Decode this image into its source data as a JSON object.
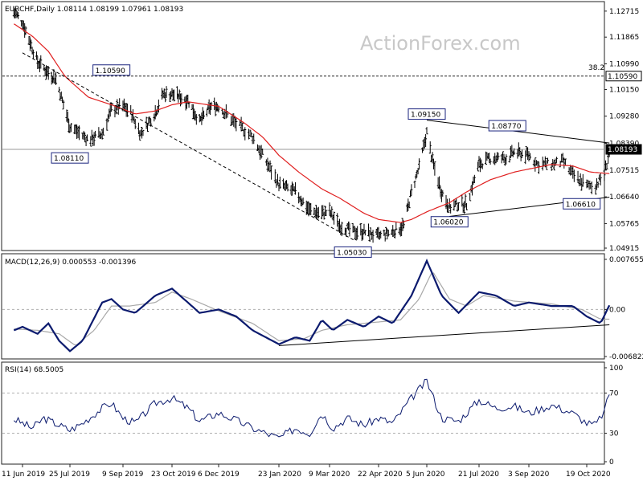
{
  "chart_data": {
    "type": "line",
    "watermark": "ActionForex.com",
    "colors": {
      "price": "#000000",
      "sma": "#e02020",
      "macd": "#0b1a6e",
      "signal": "#a8a8a8",
      "rsi": "#0b1a6e",
      "trendline": "#000000",
      "grid": "#b0b0b0",
      "label_border": "#1a237e",
      "last_price_bg": "#000000"
    },
    "x_ticks": [
      "11 Jun 2019",
      "25 Jul 2019",
      "9 Sep 2019",
      "23 Oct 2019",
      "6 Dec 2019",
      "23 Jan 2020",
      "9 Mar 2020",
      "22 Apr 2020",
      "5 Jun 2020",
      "21 Jul 2020",
      "3 Sep 2020",
      "19 Oct 2020"
    ],
    "price_panel": {
      "title": "EURCHF,Daily  1.08114 1.08199 1.07961 1.08193",
      "ylim": [
        1.0491,
        1.13
      ],
      "y_ticks": [
        "1.12715",
        "1.11865",
        "1.10990",
        "1.10150",
        "1.09280",
        "1.08390",
        "1.07515",
        "1.06640",
        "1.05765",
        "1.04915"
      ],
      "h_lines": [
        {
          "value": 1.1059,
          "style": "dashed",
          "label": "1.10590",
          "note": "38.2"
        },
        {
          "value": 1.08193,
          "style": "solid",
          "label": "1.08193"
        }
      ],
      "annotations": [
        {
          "text": "1.10590",
          "date": "2019-08-30",
          "value": 1.1059
        },
        {
          "text": "1.08110",
          "date": "2019-07-25",
          "value": 1.0811
        },
        {
          "text": "1.09150",
          "date": "2020-06-05",
          "value": 1.0915
        },
        {
          "text": "1.08770",
          "date": "2020-08-15",
          "value": 1.0877
        },
        {
          "text": "1.06020",
          "date": "2020-06-25",
          "value": 1.0602
        },
        {
          "text": "1.06610",
          "date": "2020-10-15",
          "value": 1.0661
        },
        {
          "text": "1.05030",
          "date": "2020-03-30",
          "value": 1.0503
        }
      ],
      "trendlines": [
        {
          "style": "dashed",
          "from": {
            "date": "2019-06-11",
            "value": 1.1135
          },
          "to": {
            "date": "2020-04-01",
            "value": 1.052
          }
        },
        {
          "style": "solid",
          "from": {
            "date": "2020-06-05",
            "value": 1.0915
          },
          "to": {
            "date": "2020-11-06",
            "value": 1.084
          }
        },
        {
          "style": "solid",
          "from": {
            "date": "2020-06-25",
            "value": 1.06
          },
          "to": {
            "date": "2020-11-06",
            "value": 1.0663
          }
        }
      ],
      "ohlc_anchors": [
        [
          "2019-06-03",
          1.127
        ],
        [
          "2019-06-11",
          1.1235
        ],
        [
          "2019-06-25",
          1.1105
        ],
        [
          "2019-07-05",
          1.107
        ],
        [
          "2019-07-12",
          1.105
        ],
        [
          "2019-07-25",
          1.0895
        ],
        [
          "2019-08-10",
          1.085
        ],
        [
          "2019-08-22",
          1.087
        ],
        [
          "2019-08-30",
          1.095
        ],
        [
          "2019-09-09",
          1.096
        ],
        [
          "2019-09-16",
          1.094
        ],
        [
          "2019-09-25",
          1.087
        ],
        [
          "2019-10-08",
          1.094
        ],
        [
          "2019-10-15",
          1.1
        ],
        [
          "2019-10-23",
          1.1
        ],
        [
          "2019-11-07",
          1.098
        ],
        [
          "2019-11-18",
          1.091
        ],
        [
          "2019-11-29",
          1.096
        ],
        [
          "2019-12-06",
          1.096
        ],
        [
          "2019-12-18",
          1.091
        ],
        [
          "2020-01-02",
          1.086
        ],
        [
          "2020-01-10",
          1.08
        ],
        [
          "2020-01-23",
          1.0705
        ],
        [
          "2020-02-07",
          1.068
        ],
        [
          "2020-02-20",
          1.062
        ],
        [
          "2020-03-02",
          1.061
        ],
        [
          "2020-03-09",
          1.0615
        ],
        [
          "2020-03-18",
          1.057
        ],
        [
          "2020-03-30",
          1.055
        ],
        [
          "2020-04-09",
          1.055
        ],
        [
          "2020-04-22",
          1.0535
        ],
        [
          "2020-05-05",
          1.055
        ],
        [
          "2020-05-15",
          1.057
        ],
        [
          "2020-05-22",
          1.068
        ],
        [
          "2020-05-29",
          1.076
        ],
        [
          "2020-06-05",
          1.0875
        ],
        [
          "2020-06-10",
          1.078
        ],
        [
          "2020-06-18",
          1.068
        ],
        [
          "2020-06-25",
          1.063
        ],
        [
          "2020-07-03",
          1.064
        ],
        [
          "2020-07-10",
          1.064
        ],
        [
          "2020-07-21",
          1.077
        ],
        [
          "2020-07-31",
          1.079
        ],
        [
          "2020-08-15",
          1.079
        ],
        [
          "2020-08-21",
          1.081
        ],
        [
          "2020-09-03",
          1.08
        ],
        [
          "2020-09-10",
          1.077
        ],
        [
          "2020-09-21",
          1.077
        ],
        [
          "2020-09-30",
          1.078
        ],
        [
          "2020-10-08",
          1.0735
        ],
        [
          "2020-10-19",
          1.07
        ],
        [
          "2020-10-26",
          1.07
        ],
        [
          "2020-11-02",
          1.074
        ],
        [
          "2020-11-06",
          1.081
        ]
      ],
      "sma_anchors": [
        [
          "2019-06-03",
          1.123
        ],
        [
          "2019-06-20",
          1.119
        ],
        [
          "2019-07-05",
          1.114
        ],
        [
          "2019-07-20",
          1.106
        ],
        [
          "2019-08-10",
          1.099
        ],
        [
          "2019-08-30",
          1.0965
        ],
        [
          "2019-09-20",
          1.0935
        ],
        [
          "2019-10-08",
          1.0945
        ],
        [
          "2019-10-23",
          1.0965
        ],
        [
          "2019-11-07",
          1.0975
        ],
        [
          "2019-12-06",
          1.096
        ],
        [
          "2019-12-25",
          1.091
        ],
        [
          "2020-01-10",
          1.086
        ],
        [
          "2020-01-23",
          1.08
        ],
        [
          "2020-02-10",
          1.0745
        ],
        [
          "2020-03-02",
          1.069
        ],
        [
          "2020-03-18",
          1.066
        ],
        [
          "2020-04-09",
          1.061
        ],
        [
          "2020-04-22",
          1.059
        ],
        [
          "2020-05-12",
          1.058
        ],
        [
          "2020-05-22",
          1.059
        ],
        [
          "2020-06-05",
          1.0615
        ],
        [
          "2020-06-25",
          1.0645
        ],
        [
          "2020-07-10",
          1.068
        ],
        [
          "2020-07-31",
          1.072
        ],
        [
          "2020-08-21",
          1.0745
        ],
        [
          "2020-09-03",
          1.0755
        ],
        [
          "2020-09-21",
          1.077
        ],
        [
          "2020-10-08",
          1.0765
        ],
        [
          "2020-10-22",
          1.0745
        ],
        [
          "2020-11-06",
          1.074
        ]
      ]
    },
    "macd_panel": {
      "title": "MACD(12,26,9) 0.000553 -0.001396",
      "ylim": [
        -0.007,
        0.0079
      ],
      "y_ticks": [
        "0.007655",
        "0.00",
        "-0.006822"
      ],
      "zero_line": 0.0,
      "trendline": {
        "from": {
          "date": "2020-01-23",
          "value": -0.0052
        },
        "to": {
          "date": "2020-11-06",
          "value": -0.0022
        }
      },
      "macd_anchors": [
        [
          "2019-06-03",
          -0.003
        ],
        [
          "2019-06-11",
          -0.0025
        ],
        [
          "2019-06-25",
          -0.0035
        ],
        [
          "2019-07-05",
          -0.002
        ],
        [
          "2019-07-15",
          -0.0045
        ],
        [
          "2019-07-25",
          -0.006
        ],
        [
          "2019-08-05",
          -0.0045
        ],
        [
          "2019-08-22",
          0.001
        ],
        [
          "2019-08-30",
          0.0015
        ],
        [
          "2019-09-09",
          0.0
        ],
        [
          "2019-09-20",
          -0.0005
        ],
        [
          "2019-10-08",
          0.002
        ],
        [
          "2019-10-23",
          0.003
        ],
        [
          "2019-11-07",
          0.001
        ],
        [
          "2019-11-18",
          -0.0005
        ],
        [
          "2019-12-06",
          0.0
        ],
        [
          "2019-12-20",
          -0.001
        ],
        [
          "2020-01-02",
          -0.003
        ],
        [
          "2020-01-23",
          -0.005
        ],
        [
          "2020-02-07",
          -0.004
        ],
        [
          "2020-02-20",
          -0.0045
        ],
        [
          "2020-03-02",
          -0.0015
        ],
        [
          "2020-03-12",
          -0.003
        ],
        [
          "2020-03-25",
          -0.0015
        ],
        [
          "2020-04-09",
          -0.0025
        ],
        [
          "2020-04-22",
          -0.001
        ],
        [
          "2020-05-05",
          -0.002
        ],
        [
          "2020-05-22",
          0.002
        ],
        [
          "2020-06-05",
          0.007
        ],
        [
          "2020-06-18",
          0.002
        ],
        [
          "2020-07-03",
          -0.0005
        ],
        [
          "2020-07-21",
          0.0025
        ],
        [
          "2020-08-05",
          0.002
        ],
        [
          "2020-08-21",
          0.0005
        ],
        [
          "2020-09-03",
          0.001
        ],
        [
          "2020-09-21",
          0.0005
        ],
        [
          "2020-10-08",
          0.0005
        ],
        [
          "2020-10-19",
          -0.001
        ],
        [
          "2020-10-30",
          -0.002
        ],
        [
          "2020-11-06",
          0.0006
        ]
      ],
      "signal_anchors": [
        [
          "2019-06-03",
          -0.0028
        ],
        [
          "2019-06-25",
          -0.003
        ],
        [
          "2019-07-15",
          -0.0035
        ],
        [
          "2019-07-30",
          -0.0052
        ],
        [
          "2019-08-15",
          -0.003
        ],
        [
          "2019-08-30",
          0.0005
        ],
        [
          "2019-09-15",
          0.0005
        ],
        [
          "2019-10-08",
          0.001
        ],
        [
          "2019-10-23",
          0.0025
        ],
        [
          "2019-11-10",
          0.0015
        ],
        [
          "2019-12-06",
          -0.0002
        ],
        [
          "2020-01-02",
          -0.002
        ],
        [
          "2020-01-23",
          -0.0045
        ],
        [
          "2020-02-15",
          -0.0042
        ],
        [
          "2020-03-02",
          -0.003
        ],
        [
          "2020-03-25",
          -0.0022
        ],
        [
          "2020-04-22",
          -0.0018
        ],
        [
          "2020-05-12",
          -0.0015
        ],
        [
          "2020-05-29",
          0.0015
        ],
        [
          "2020-06-10",
          0.0055
        ],
        [
          "2020-06-25",
          0.0015
        ],
        [
          "2020-07-10",
          0.0005
        ],
        [
          "2020-07-25",
          0.002
        ],
        [
          "2020-08-21",
          0.0012
        ],
        [
          "2020-09-21",
          0.0008
        ],
        [
          "2020-10-15",
          0.0
        ],
        [
          "2020-10-30",
          -0.0014
        ],
        [
          "2020-11-06",
          -0.0014
        ]
      ]
    },
    "rsi_panel": {
      "title": "RSI(14) 68.5005",
      "ylim": [
        0,
        100
      ],
      "y_ticks": [
        "100",
        "70",
        "30",
        "0"
      ],
      "levels": [
        70,
        30
      ],
      "rsi_anchors": [
        [
          "2019-06-03",
          44
        ],
        [
          "2019-06-11",
          40
        ],
        [
          "2019-06-20",
          35
        ],
        [
          "2019-07-01",
          45
        ],
        [
          "2019-07-15",
          38
        ],
        [
          "2019-07-25",
          33
        ],
        [
          "2019-08-05",
          40
        ],
        [
          "2019-08-22",
          55
        ],
        [
          "2019-08-30",
          60
        ],
        [
          "2019-09-09",
          45
        ],
        [
          "2019-09-20",
          40
        ],
        [
          "2019-10-08",
          60
        ],
        [
          "2019-10-23",
          65
        ],
        [
          "2019-11-07",
          55
        ],
        [
          "2019-11-18",
          42
        ],
        [
          "2019-12-06",
          50
        ],
        [
          "2019-12-20",
          43
        ],
        [
          "2020-01-02",
          35
        ],
        [
          "2020-01-23",
          25
        ],
        [
          "2020-02-07",
          35
        ],
        [
          "2020-02-20",
          30
        ],
        [
          "2020-03-02",
          50
        ],
        [
          "2020-03-12",
          35
        ],
        [
          "2020-03-25",
          45
        ],
        [
          "2020-04-09",
          38
        ],
        [
          "2020-04-22",
          45
        ],
        [
          "2020-05-05",
          40
        ],
        [
          "2020-05-22",
          65
        ],
        [
          "2020-06-05",
          82
        ],
        [
          "2020-06-18",
          45
        ],
        [
          "2020-07-03",
          42
        ],
        [
          "2020-07-21",
          63
        ],
        [
          "2020-08-05",
          55
        ],
        [
          "2020-08-21",
          57
        ],
        [
          "2020-09-03",
          50
        ],
        [
          "2020-09-21",
          58
        ],
        [
          "2020-10-08",
          50
        ],
        [
          "2020-10-19",
          40
        ],
        [
          "2020-10-26",
          38
        ],
        [
          "2020-11-02",
          52
        ],
        [
          "2020-11-06",
          68.5
        ]
      ]
    }
  }
}
